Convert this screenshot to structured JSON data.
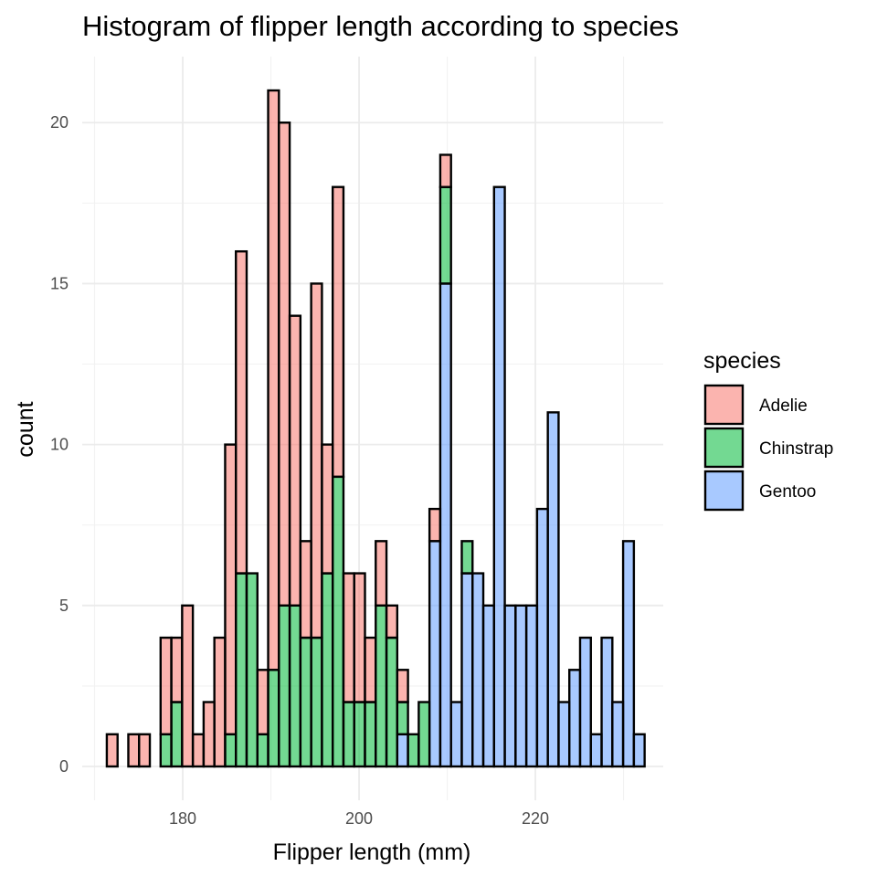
{
  "chart_data": {
    "type": "bar",
    "subtype": "stacked-histogram",
    "title": "Histogram of flipper length according to species",
    "xlabel": "Flipper length (mm)",
    "ylabel": "count",
    "legend_title": "species",
    "legend_position": "right",
    "grid": true,
    "xlim": [
      168.6,
      234.5
    ],
    "ylim": [
      -1.05,
      22.05
    ],
    "x_ticks": [
      180,
      200,
      220
    ],
    "x_tick_labels": [
      "180",
      "200",
      "220"
    ],
    "y_ticks": [
      0,
      5,
      10,
      15,
      20
    ],
    "y_tick_labels": [
      "0",
      "5",
      "10",
      "15",
      "20"
    ],
    "bin_width": 1.22,
    "bin_centers": [
      172.0,
      173.22,
      174.44,
      175.66,
      176.88,
      178.1,
      179.32,
      180.54,
      181.76,
      182.98,
      184.2,
      185.42,
      186.64,
      187.86,
      189.08,
      190.3,
      191.52,
      192.74,
      193.96,
      195.18,
      196.4,
      197.62,
      198.84,
      200.06,
      201.28,
      202.5,
      203.72,
      204.94,
      206.16,
      207.38,
      208.6,
      209.82,
      211.04,
      212.26,
      213.48,
      214.7,
      215.92,
      217.14,
      218.36,
      219.58,
      220.8,
      222.02,
      223.24,
      224.46,
      225.68,
      226.9,
      228.12,
      229.34,
      230.56,
      231.78
    ],
    "series": [
      {
        "name": "Adelie",
        "color": "#F8766D",
        "values": [
          1,
          0,
          1,
          1,
          0,
          3,
          2,
          5,
          1,
          2,
          4,
          9,
          10,
          0,
          2,
          18,
          15,
          9,
          3,
          11,
          4,
          9,
          4,
          4,
          2,
          2,
          1,
          1,
          0,
          0,
          1,
          1,
          0,
          0,
          0,
          0,
          0,
          0,
          0,
          0,
          0,
          0,
          0,
          0,
          0,
          0,
          0,
          0,
          0,
          0
        ]
      },
      {
        "name": "Chinstrap",
        "color": "#00BA38",
        "values": [
          0,
          0,
          0,
          0,
          0,
          1,
          2,
          0,
          0,
          0,
          0,
          1,
          6,
          6,
          1,
          3,
          5,
          5,
          4,
          4,
          6,
          9,
          2,
          2,
          2,
          5,
          4,
          1,
          1,
          2,
          0,
          3,
          0,
          1,
          0,
          0,
          0,
          0,
          0,
          0,
          0,
          0,
          0,
          0,
          0,
          0,
          0,
          0,
          0,
          0
        ]
      },
      {
        "name": "Gentoo",
        "color": "#619CFF",
        "values": [
          0,
          0,
          0,
          0,
          0,
          0,
          0,
          0,
          0,
          0,
          0,
          0,
          0,
          0,
          0,
          0,
          0,
          0,
          0,
          0,
          0,
          0,
          0,
          0,
          0,
          0,
          0,
          1,
          0,
          0,
          7,
          15,
          2,
          6,
          6,
          5,
          18,
          5,
          5,
          5,
          8,
          11,
          2,
          3,
          4,
          1,
          4,
          2,
          7,
          1
        ]
      }
    ]
  }
}
